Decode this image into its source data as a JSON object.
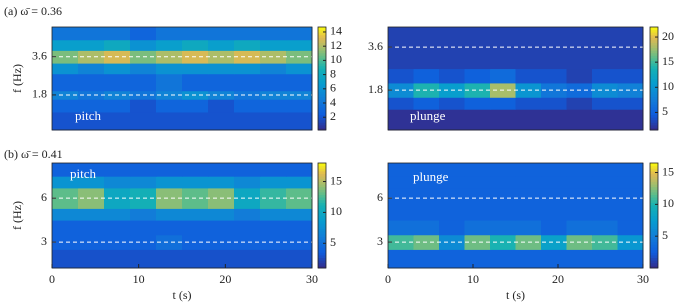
{
  "chart_data": [
    {
      "type": "heatmap",
      "title": "(a) ω̄ = 0.36",
      "annotation": "pitch",
      "ylabel": "f (Hz)",
      "colormap": "parula",
      "xlim": [
        0,
        30
      ],
      "ylim": [
        0.15,
        5.0
      ],
      "yticks": [
        1.8,
        3.6
      ],
      "grid": true,
      "zlim": [
        0.2,
        14.7
      ],
      "zticks": [
        2,
        4,
        6,
        8,
        10,
        12,
        14
      ],
      "xbins": [
        0,
        3,
        6,
        9,
        12,
        15,
        18,
        21,
        24,
        27,
        30
      ],
      "ybins": [
        0.15,
        1.0,
        1.6,
        2.0,
        2.8,
        3.3,
        3.9,
        4.4,
        5.0
      ],
      "z": [
        [
          2,
          2,
          2,
          2,
          2,
          2,
          2,
          2,
          2,
          2
        ],
        [
          3,
          3,
          3,
          2,
          3,
          3,
          2,
          3,
          3,
          3
        ],
        [
          5,
          4,
          5,
          4,
          5,
          6,
          5,
          4,
          5,
          5
        ],
        [
          3,
          3,
          3,
          3,
          4,
          3,
          3,
          3,
          3,
          3
        ],
        [
          6,
          5,
          6,
          5,
          6,
          6,
          6,
          6,
          5,
          6
        ],
        [
          11,
          12,
          13,
          11,
          12,
          13,
          12,
          13,
          12,
          11
        ],
        [
          7,
          7,
          8,
          6,
          7,
          8,
          7,
          8,
          7,
          7
        ],
        [
          4,
          4,
          4,
          3,
          4,
          4,
          4,
          4,
          4,
          4
        ]
      ]
    },
    {
      "type": "heatmap",
      "annotation": "plunge",
      "colormap": "parula",
      "xlim": [
        0,
        30
      ],
      "ylim": [
        0.13,
        4.44
      ],
      "yticks": [
        1.8,
        3.6
      ],
      "grid": true,
      "zlim": [
        1.5,
        22
      ],
      "zticks": [
        5,
        10,
        15,
        20
      ],
      "xbins": [
        0,
        3,
        6,
        9,
        12,
        15,
        18,
        21,
        24,
        27,
        30
      ],
      "ybins": [
        0.13,
        1.0,
        1.5,
        2.1,
        2.7,
        3.3,
        3.9,
        4.44
      ],
      "z": [
        [
          2,
          2,
          2,
          2,
          2,
          2,
          2,
          2,
          2,
          2
        ],
        [
          4,
          5,
          4,
          5,
          5,
          4,
          4,
          3,
          4,
          4
        ],
        [
          9,
          14,
          11,
          14,
          18,
          10,
          7,
          6,
          9,
          8
        ],
        [
          4,
          5,
          4,
          5,
          6,
          4,
          4,
          3,
          4,
          4
        ],
        [
          3,
          3,
          3,
          3,
          3,
          3,
          3,
          3,
          3,
          3
        ],
        [
          3,
          3,
          3,
          3,
          3,
          3,
          3,
          3,
          3,
          3
        ],
        [
          3,
          3,
          3,
          3,
          3,
          3,
          3,
          3,
          3,
          3
        ]
      ]
    },
    {
      "type": "heatmap",
      "title": "(b) ω̄ = 0.41",
      "annotation": "pitch",
      "ylabel": "f (Hz)",
      "xlabel": "t (s)",
      "colormap": "parula",
      "xlim": [
        0,
        30
      ],
      "xticks": [
        0,
        10,
        20,
        30
      ],
      "ylim": [
        1.23,
        8.4
      ],
      "yticks": [
        3,
        6
      ],
      "grid": true,
      "zlim": [
        1,
        18
      ],
      "zticks": [
        5,
        10,
        15
      ],
      "xbins": [
        0,
        3,
        6,
        9,
        12,
        15,
        18,
        21,
        24,
        27,
        30
      ],
      "ybins": [
        1.23,
        2.5,
        3.5,
        4.5,
        5.3,
        6.7,
        7.5,
        8.4
      ],
      "z": [
        [
          3,
          3,
          3,
          3,
          3,
          3,
          3,
          3,
          3,
          3
        ],
        [
          4,
          4,
          4,
          4,
          5,
          4,
          4,
          4,
          4,
          4
        ],
        [
          4,
          4,
          4,
          4,
          4,
          4,
          4,
          4,
          4,
          4
        ],
        [
          7,
          7,
          7,
          6,
          7,
          7,
          7,
          6,
          7,
          7
        ],
        [
          13,
          14,
          10,
          11,
          14,
          13,
          14,
          10,
          12,
          13
        ],
        [
          8,
          8,
          7,
          7,
          8,
          8,
          8,
          7,
          8,
          8
        ],
        [
          4,
          4,
          4,
          4,
          4,
          4,
          4,
          4,
          4,
          4
        ]
      ]
    },
    {
      "type": "heatmap",
      "annotation": "plunge",
      "xlabel": "t (s)",
      "colormap": "parula",
      "xlim": [
        0,
        30
      ],
      "xticks": [
        0,
        10,
        20,
        30
      ],
      "ylim": [
        1.23,
        8.4
      ],
      "yticks": [
        3,
        6
      ],
      "grid": true,
      "zlim": [
        0,
        16.5
      ],
      "zticks": [
        5,
        10,
        15
      ],
      "xbins": [
        0,
        3,
        6,
        9,
        12,
        15,
        18,
        21,
        24,
        27,
        30
      ],
      "ybins": [
        1.23,
        2.5,
        3.5,
        4.5,
        5.3,
        6.7,
        7.5,
        8.4
      ],
      "z": [
        [
          3,
          3,
          3,
          3,
          3,
          3,
          3,
          3,
          3,
          3
        ],
        [
          11,
          12,
          6,
          12,
          10,
          12,
          8,
          12,
          11,
          7
        ],
        [
          4,
          4,
          3,
          4,
          4,
          4,
          3,
          4,
          4,
          3
        ],
        [
          3,
          3,
          3,
          3,
          3,
          3,
          3,
          3,
          3,
          3
        ],
        [
          3,
          3,
          3,
          3,
          3,
          3,
          3,
          3,
          3,
          3
        ],
        [
          3,
          3,
          3,
          3,
          3,
          3,
          3,
          3,
          3,
          3
        ],
        [
          3,
          3,
          3,
          3,
          3,
          3,
          3,
          3,
          3,
          3
        ]
      ]
    }
  ]
}
